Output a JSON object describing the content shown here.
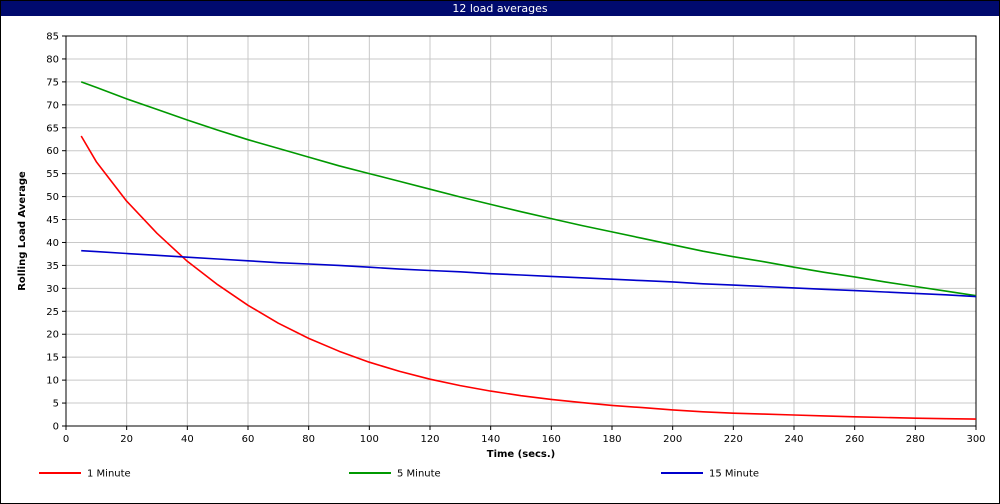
{
  "window": {
    "title": "12 load averages"
  },
  "chart_data": {
    "type": "line",
    "title": "12 load averages",
    "xlabel": "Time (secs.)",
    "ylabel": "Rolling Load Average",
    "xlim": [
      0,
      300
    ],
    "ylim": [
      0,
      85
    ],
    "x_ticks": [
      0,
      20,
      40,
      60,
      80,
      100,
      120,
      140,
      160,
      180,
      200,
      220,
      240,
      260,
      280,
      300
    ],
    "y_ticks": [
      0,
      5,
      10,
      15,
      20,
      25,
      30,
      35,
      40,
      45,
      50,
      55,
      60,
      65,
      70,
      75,
      80,
      85
    ],
    "grid": true,
    "legend_position": "bottom",
    "x": [
      5,
      10,
      20,
      30,
      40,
      50,
      60,
      70,
      80,
      90,
      100,
      110,
      120,
      130,
      140,
      150,
      160,
      170,
      180,
      190,
      200,
      210,
      220,
      230,
      240,
      250,
      260,
      270,
      280,
      290,
      300
    ],
    "series": [
      {
        "name": "1 Minute",
        "color": "#ff0000",
        "values": [
          63.2,
          57.6,
          49.0,
          42.0,
          35.9,
          30.8,
          26.3,
          22.4,
          19.1,
          16.3,
          13.9,
          11.9,
          10.2,
          8.8,
          7.6,
          6.6,
          5.8,
          5.1,
          4.5,
          4.0,
          3.5,
          3.1,
          2.8,
          2.6,
          2.4,
          2.2,
          2.0,
          1.85,
          1.7,
          1.6,
          1.5
        ]
      },
      {
        "name": "5 Minute",
        "color": "#009900",
        "values": [
          75.0,
          73.8,
          71.3,
          69.0,
          66.7,
          64.5,
          62.4,
          60.5,
          58.6,
          56.7,
          55.0,
          53.3,
          51.6,
          49.9,
          48.3,
          46.7,
          45.2,
          43.7,
          42.3,
          40.9,
          39.5,
          38.1,
          36.9,
          35.8,
          34.6,
          33.5,
          32.5,
          31.4,
          30.4,
          29.4,
          28.4
        ]
      },
      {
        "name": "15 Minute",
        "color": "#0000cc",
        "values": [
          38.2,
          38.0,
          37.6,
          37.2,
          36.8,
          36.4,
          36.0,
          35.6,
          35.3,
          35.0,
          34.6,
          34.2,
          33.9,
          33.6,
          33.2,
          32.9,
          32.6,
          32.3,
          32.0,
          31.7,
          31.4,
          31.0,
          30.7,
          30.4,
          30.1,
          29.8,
          29.5,
          29.2,
          28.9,
          28.6,
          28.2
        ]
      }
    ]
  }
}
